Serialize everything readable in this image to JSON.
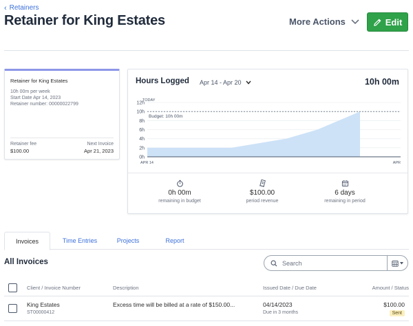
{
  "header": {
    "back_label": "Retainers",
    "title": "Retainer for King Estates",
    "more_actions_label": "More Actions",
    "edit_label": "Edit"
  },
  "summary": {
    "title": "Retainer for King Estates",
    "hours_per_week": "10h 00m per week",
    "start_date": "Start Date Apr 14, 2023",
    "retainer_number": "Retainer number: 00000022799",
    "fee_label": "Retainer fee",
    "fee_value": "$100.00",
    "next_invoice_label": "Next Invoice",
    "next_invoice_value": "Apr 21, 2023",
    "accent_color": "#8d96e8"
  },
  "hours": {
    "title": "Hours Logged",
    "range": "Apr 14 - Apr 20",
    "total": "10h 00m",
    "stats": [
      {
        "icon": "stopwatch-icon",
        "value": "0h 00m",
        "label": "remaining in budget"
      },
      {
        "icon": "receipt-icon",
        "value": "$100.00",
        "label": "period revenue"
      },
      {
        "icon": "calendar-icon",
        "value": "6 days",
        "label": "remaining in period"
      }
    ]
  },
  "chart_data": {
    "type": "area",
    "y_ticks": [
      "0h",
      "2h",
      "4h",
      "6h",
      "8h",
      "10h",
      "12h"
    ],
    "ylim": [
      0,
      12
    ],
    "x_start_label": "APR 14",
    "x_end_label": "APR",
    "today_label": "TODAY",
    "budget_label": "Budget: 10h 00m",
    "budget_value": 10,
    "series": [
      {
        "values": [
          2,
          2,
          2,
          4,
          6,
          10
        ]
      }
    ],
    "fill_color": "#cde2f7",
    "grid": true
  },
  "tabs": [
    "Invoices",
    "Time Entries",
    "Projects",
    "Report"
  ],
  "invoices": {
    "heading": "All Invoices",
    "search_placeholder": "Search",
    "columns": [
      "Client / Invoice Number",
      "Description",
      "Issued Date / Due Date",
      "Amount / Status"
    ],
    "rows": [
      {
        "client": "King Estates",
        "number": "ST00000412",
        "description": "Excess time will be billed at a rate of $150.00...",
        "issued": "04/14/2023",
        "due": "Due in 3 months",
        "amount": "$100.00",
        "status": "Sent"
      }
    ]
  }
}
